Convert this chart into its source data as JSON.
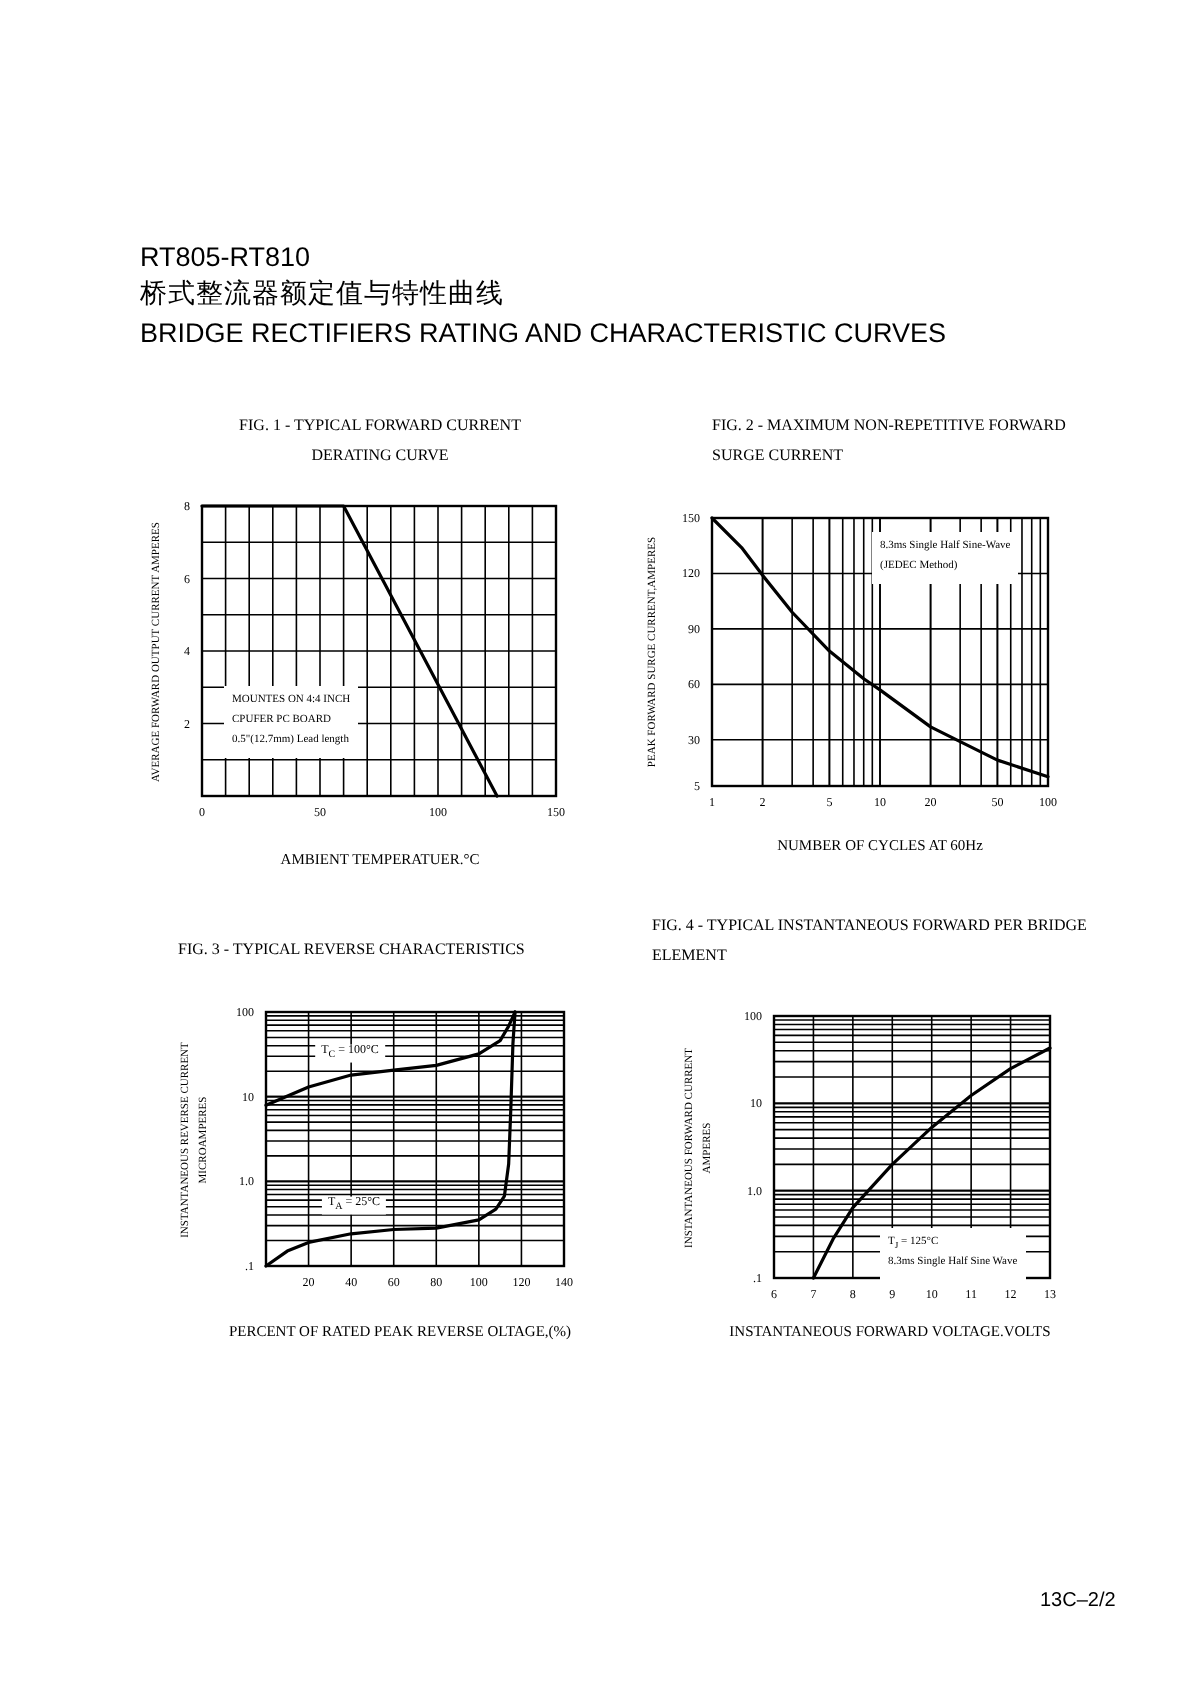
{
  "chart_data": [
    {
      "type": "other",
      "title": "RT805-RT810",
      "subtitle": "桥式整流器额定值与特性曲线",
      "annotations": [
        "BRIDGE RECTIFIERS RATING AND CHARACTERISTIC CURVES",
        "13C–2/2"
      ]
    },
    {
      "type": "line",
      "title": "FIG. 1 - TYPICAL FORWARD  CURRENT DERATING CURVE",
      "xlabel": "AMBIENT TEMPERATUER.°C",
      "ylabel": "AVERAGE FORWARD OUTPUT CURRENT AMPERES",
      "xlim": [
        0,
        150
      ],
      "ylim": [
        0,
        8
      ],
      "xticks": [
        0,
        {
          "value": 10,
          "label": null
        },
        {
          "value": 20,
          "label": null
        },
        {
          "value": 30,
          "label": null
        },
        {
          "value": 40,
          "label": null
        },
        50,
        {
          "value": 60,
          "label": null
        },
        {
          "value": 70,
          "label": null
        },
        {
          "value": 80,
          "label": null
        },
        {
          "value": 90,
          "label": null
        },
        100,
        {
          "value": 110,
          "label": null
        },
        {
          "value": 120,
          "label": null
        },
        {
          "value": 130,
          "label": null
        },
        {
          "value": 140,
          "label": null
        },
        150
      ],
      "yticks": [
        {
          "value": 1,
          "label": null
        },
        2,
        {
          "value": 3,
          "label": null
        },
        4,
        {
          "value": 5,
          "label": null
        },
        6,
        {
          "value": 7,
          "label": null
        },
        8
      ],
      "grid": true,
      "annotations": [
        "MOUNTES ON 4:4 INCH",
        "CPUFER PC BOARD",
        "0.5\"(12.7mm) Lead length"
      ],
      "series": [
        {
          "color": "#000000",
          "x": [
            0,
            60,
            125
          ],
          "values": [
            8,
            8,
            0
          ]
        }
      ]
    },
    {
      "type": "line",
      "title": "FIG. 2 - MAXIMUM NON-REPETITIVE FORWARD  SURGE CURRENT",
      "xlabel": "NUMBER OF CYCLES AT 60Hz",
      "ylabel": "PEAK FORWARD SURGE CURRENT,AMPERES",
      "log": "x",
      "xlim": [
        1,
        100
      ],
      "ylim": [
        5,
        150
      ],
      "xticks": [
        1,
        2,
        5,
        10,
        20,
        50,
        100
      ],
      "yticks": [
        5,
        30,
        60,
        90,
        120,
        150
      ],
      "grid": true,
      "annotations": [
        "8.3ms Single Half Sine-Wave",
        "(JEDEC Method)"
      ],
      "series": [
        {
          "color": "#000000",
          "x": [
            1,
            1.5,
            2,
            3,
            5,
            8,
            10,
            20,
            30,
            50,
            100
          ],
          "values": [
            150,
            134,
            119,
            99,
            78,
            63,
            57,
            37,
            29,
            19,
            10
          ]
        }
      ]
    },
    {
      "type": "line",
      "title": "FIG. 3 - TYPICAL REVERSE CHARACTERISTICS",
      "xlabel": "PERCENT OF RATED PEAK REVERSE OLTAGE,(%)",
      "ylabel": "INSTANTANEOUS REVERSE CURRENT MICROAMPERES",
      "log": "y",
      "xlim": [
        0,
        140
      ],
      "ylim": [
        0.1,
        100
      ],
      "xticks": [
        {
          "value": 0,
          "label": null
        },
        20,
        40,
        60,
        80,
        100,
        120,
        140
      ],
      "yticks": [
        {
          "value": 0.1,
          "label": ".1"
        },
        {
          "value": 1,
          "label": "1.0"
        },
        10,
        100
      ],
      "grid": true,
      "series": [
        {
          "name": "T$_{C}$ = 100°C",
          "color": "#000000",
          "x": [
            0,
            20,
            40,
            60,
            80,
            100,
            110,
            114,
            117
          ],
          "values": [
            7.9,
            13,
            18,
            20.6,
            23.4,
            32,
            46,
            68,
            100
          ]
        },
        {
          "name": "T$_{A}$ = 25°C",
          "color": "#000000",
          "x": [
            0,
            10,
            20,
            40,
            60,
            80,
            100,
            108,
            112,
            114,
            115,
            116,
            117
          ],
          "values": [
            0.1,
            0.15,
            0.19,
            0.24,
            0.27,
            0.28,
            0.35,
            0.47,
            0.67,
            1.6,
            7,
            42,
            100
          ]
        }
      ]
    },
    {
      "type": "line",
      "title": "FIG. 4 - TYPICAL INSTANTANEOUS FORWARD PER BRIDGE ELEMENT",
      "xlabel": "INSTANTANEOUS FORWARD VOLTAGE.VOLTS",
      "ylabel": "INSTANTANEOUS FORWARD CURRENT AMPERES",
      "log": "y",
      "xlim": [
        6,
        13
      ],
      "ylim": [
        0.1,
        100
      ],
      "xticks": [
        6,
        7,
        8,
        9,
        10,
        11,
        12,
        13
      ],
      "yticks": [
        {
          "value": 0.1,
          "label": ".1"
        },
        {
          "value": 1,
          "label": "1.0"
        },
        10,
        100
      ],
      "grid": true,
      "annotations": [
        "T$_{J}$ = 125°C",
        "8.3ms Single Half Sine Wave"
      ],
      "series": [
        {
          "color": "#000000",
          "x": [
            7,
            7.5,
            8,
            9,
            10,
            11,
            12,
            13
          ],
          "values": [
            0.1,
            0.28,
            0.64,
            2.0,
            5.3,
            12.3,
            25,
            43
          ]
        }
      ]
    }
  ]
}
